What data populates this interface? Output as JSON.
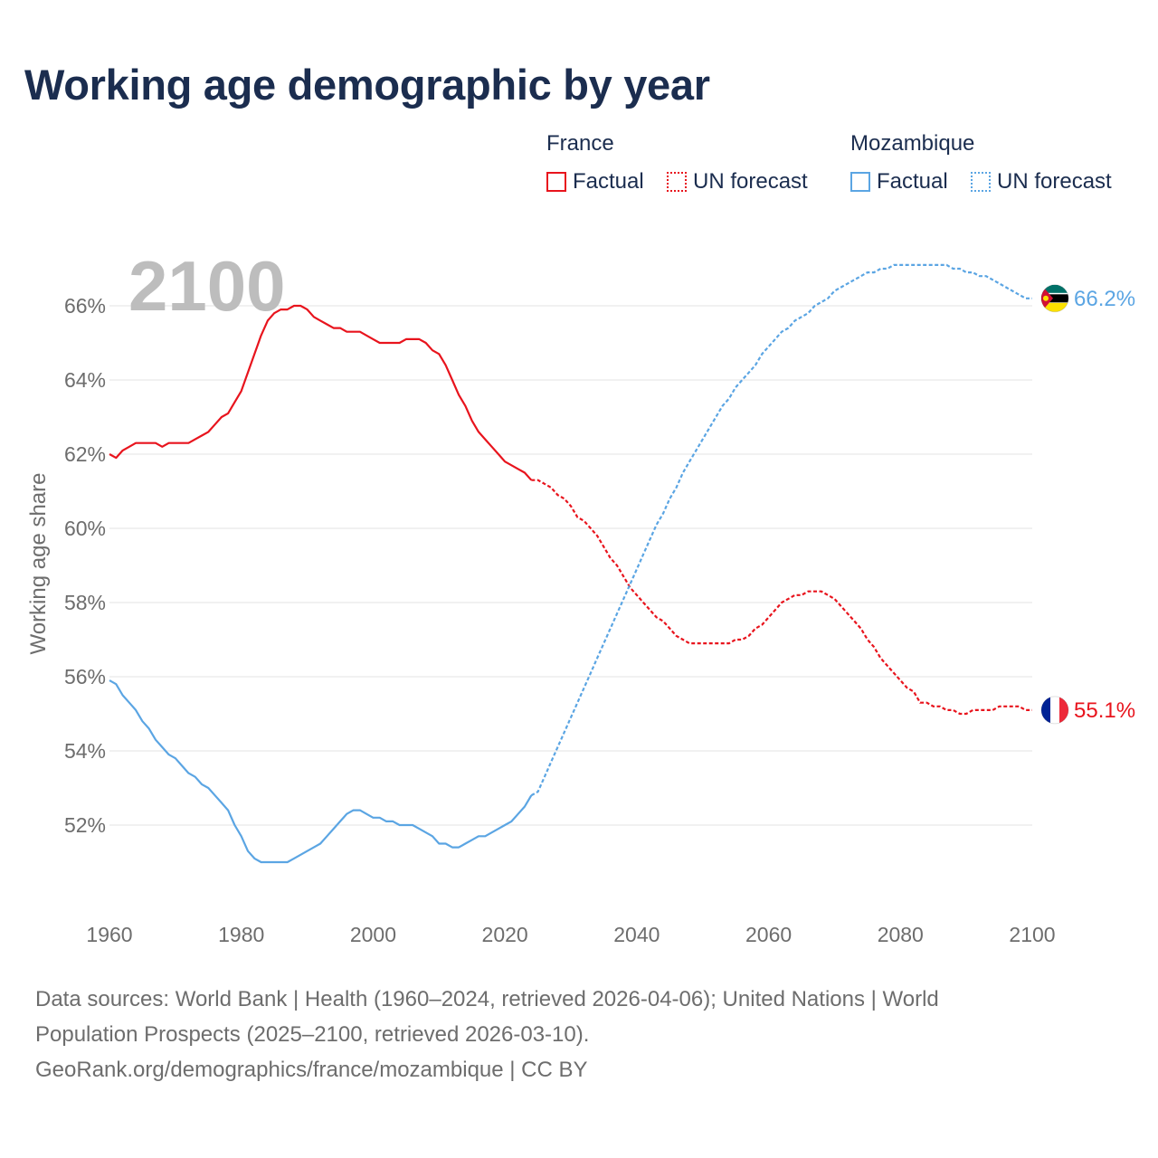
{
  "title": "Working age demographic by year",
  "legend": {
    "groups": [
      {
        "name": "France",
        "factual_label": "Factual",
        "forecast_label": "UN forecast",
        "color": "#e8141d"
      },
      {
        "name": "Mozambique",
        "factual_label": "Factual",
        "forecast_label": "UN forecast",
        "color": "#5ba5e3"
      }
    ]
  },
  "colors": {
    "france": "#e8141d",
    "mozambique": "#5ba5e3",
    "grid": "#e3e3e3",
    "axis_text": "#6d6d6d",
    "year_watermark": "#bdbdbd"
  },
  "chart_data": {
    "type": "line",
    "title": "Working age demographic by year",
    "xlabel": "",
    "ylabel": "Working age share",
    "xlim": [
      1960,
      2100
    ],
    "ylim": [
      50.2,
      67.2
    ],
    "x_ticks": [
      1960,
      1980,
      2000,
      2020,
      2040,
      2060,
      2080,
      2100
    ],
    "x_tick_labels": [
      "1960",
      "1980",
      "2000",
      "2020",
      "2040",
      "2060",
      "2080",
      "2100"
    ],
    "y_ticks": [
      52,
      54,
      56,
      58,
      60,
      62,
      64,
      66
    ],
    "y_tick_labels": [
      "52%",
      "54%",
      "56%",
      "58%",
      "60%",
      "62%",
      "64%",
      "66%"
    ],
    "current_year_label": "2100",
    "forecast_start_year": 2024,
    "series": [
      {
        "name": "France",
        "end_label": "55.1%",
        "flag_icon": "france-flag-icon",
        "factual": {
          "x": [
            1960,
            1961,
            1962,
            1963,
            1964,
            1965,
            1966,
            1967,
            1968,
            1969,
            1970,
            1971,
            1972,
            1973,
            1974,
            1975,
            1976,
            1977,
            1978,
            1979,
            1980,
            1981,
            1982,
            1983,
            1984,
            1985,
            1986,
            1987,
            1988,
            1989,
            1990,
            1991,
            1992,
            1993,
            1994,
            1995,
            1996,
            1997,
            1998,
            1999,
            2000,
            2001,
            2002,
            2003,
            2004,
            2005,
            2006,
            2007,
            2008,
            2009,
            2010,
            2011,
            2012,
            2013,
            2014,
            2015,
            2016,
            2017,
            2018,
            2019,
            2020,
            2021,
            2022,
            2023,
            2024
          ],
          "y": [
            62.0,
            61.9,
            62.1,
            62.2,
            62.3,
            62.3,
            62.3,
            62.3,
            62.2,
            62.3,
            62.3,
            62.3,
            62.3,
            62.4,
            62.5,
            62.6,
            62.8,
            63.0,
            63.1,
            63.4,
            63.7,
            64.2,
            64.7,
            65.2,
            65.6,
            65.8,
            65.9,
            65.9,
            66.0,
            66.0,
            65.9,
            65.7,
            65.6,
            65.5,
            65.4,
            65.4,
            65.3,
            65.3,
            65.3,
            65.2,
            65.1,
            65.0,
            65.0,
            65.0,
            65.0,
            65.1,
            65.1,
            65.1,
            65.0,
            64.8,
            64.7,
            64.4,
            64.0,
            63.6,
            63.3,
            62.9,
            62.6,
            62.4,
            62.2,
            62.0,
            61.8,
            61.7,
            61.6,
            61.5,
            61.3
          ]
        },
        "forecast": {
          "x": [
            2024,
            2025,
            2026,
            2027,
            2028,
            2029,
            2030,
            2031,
            2032,
            2033,
            2034,
            2035,
            2036,
            2037,
            2038,
            2039,
            2040,
            2041,
            2042,
            2043,
            2044,
            2045,
            2046,
            2047,
            2048,
            2049,
            2050,
            2051,
            2052,
            2053,
            2054,
            2055,
            2056,
            2057,
            2058,
            2059,
            2060,
            2061,
            2062,
            2063,
            2064,
            2065,
            2066,
            2067,
            2068,
            2069,
            2070,
            2071,
            2072,
            2073,
            2074,
            2075,
            2076,
            2077,
            2078,
            2079,
            2080,
            2081,
            2082,
            2083,
            2084,
            2085,
            2086,
            2087,
            2088,
            2089,
            2090,
            2091,
            2092,
            2093,
            2094,
            2095,
            2096,
            2097,
            2098,
            2099,
            2100
          ],
          "y": [
            61.3,
            61.3,
            61.2,
            61.1,
            60.9,
            60.8,
            60.6,
            60.3,
            60.2,
            60.0,
            59.8,
            59.5,
            59.2,
            59.0,
            58.7,
            58.4,
            58.2,
            58.0,
            57.8,
            57.6,
            57.5,
            57.3,
            57.1,
            57.0,
            56.9,
            56.9,
            56.9,
            56.9,
            56.9,
            56.9,
            56.9,
            57.0,
            57.0,
            57.1,
            57.3,
            57.4,
            57.6,
            57.8,
            58.0,
            58.1,
            58.2,
            58.2,
            58.3,
            58.3,
            58.3,
            58.2,
            58.1,
            57.9,
            57.7,
            57.5,
            57.3,
            57.0,
            56.8,
            56.5,
            56.3,
            56.1,
            55.9,
            55.7,
            55.6,
            55.3,
            55.3,
            55.2,
            55.2,
            55.1,
            55.1,
            55.0,
            55.0,
            55.1,
            55.1,
            55.1,
            55.1,
            55.2,
            55.2,
            55.2,
            55.2,
            55.1,
            55.1
          ]
        }
      },
      {
        "name": "Mozambique",
        "end_label": "66.2%",
        "flag_icon": "mozambique-flag-icon",
        "factual": {
          "x": [
            1960,
            1961,
            1962,
            1963,
            1964,
            1965,
            1966,
            1967,
            1968,
            1969,
            1970,
            1971,
            1972,
            1973,
            1974,
            1975,
            1976,
            1977,
            1978,
            1979,
            1980,
            1981,
            1982,
            1983,
            1984,
            1985,
            1986,
            1987,
            1988,
            1989,
            1990,
            1991,
            1992,
            1993,
            1994,
            1995,
            1996,
            1997,
            1998,
            1999,
            2000,
            2001,
            2002,
            2003,
            2004,
            2005,
            2006,
            2007,
            2008,
            2009,
            2010,
            2011,
            2012,
            2013,
            2014,
            2015,
            2016,
            2017,
            2018,
            2019,
            2020,
            2021,
            2022,
            2023,
            2024
          ],
          "y": [
            55.9,
            55.8,
            55.5,
            55.3,
            55.1,
            54.8,
            54.6,
            54.3,
            54.1,
            53.9,
            53.8,
            53.6,
            53.4,
            53.3,
            53.1,
            53.0,
            52.8,
            52.6,
            52.4,
            52.0,
            51.7,
            51.3,
            51.1,
            51.0,
            51.0,
            51.0,
            51.0,
            51.0,
            51.1,
            51.2,
            51.3,
            51.4,
            51.5,
            51.7,
            51.9,
            52.1,
            52.3,
            52.4,
            52.4,
            52.3,
            52.2,
            52.2,
            52.1,
            52.1,
            52.0,
            52.0,
            52.0,
            51.9,
            51.8,
            51.7,
            51.5,
            51.5,
            51.4,
            51.4,
            51.5,
            51.6,
            51.7,
            51.7,
            51.8,
            51.9,
            52.0,
            52.1,
            52.3,
            52.5,
            52.8
          ]
        },
        "forecast": {
          "x": [
            2024,
            2025,
            2026,
            2027,
            2028,
            2029,
            2030,
            2031,
            2032,
            2033,
            2034,
            2035,
            2036,
            2037,
            2038,
            2039,
            2040,
            2041,
            2042,
            2043,
            2044,
            2045,
            2046,
            2047,
            2048,
            2049,
            2050,
            2051,
            2052,
            2053,
            2054,
            2055,
            2056,
            2057,
            2058,
            2059,
            2060,
            2061,
            2062,
            2063,
            2064,
            2065,
            2066,
            2067,
            2068,
            2069,
            2070,
            2071,
            2072,
            2073,
            2074,
            2075,
            2076,
            2077,
            2078,
            2079,
            2080,
            2081,
            2082,
            2083,
            2084,
            2085,
            2086,
            2087,
            2088,
            2089,
            2090,
            2091,
            2092,
            2093,
            2094,
            2095,
            2096,
            2097,
            2098,
            2099,
            2100
          ],
          "y": [
            52.8,
            52.9,
            53.3,
            53.7,
            54.1,
            54.5,
            54.9,
            55.3,
            55.7,
            56.1,
            56.5,
            56.9,
            57.3,
            57.7,
            58.1,
            58.5,
            58.9,
            59.3,
            59.7,
            60.1,
            60.4,
            60.8,
            61.1,
            61.5,
            61.8,
            62.1,
            62.4,
            62.7,
            63.0,
            63.3,
            63.5,
            63.8,
            64.0,
            64.2,
            64.4,
            64.7,
            64.9,
            65.1,
            65.3,
            65.4,
            65.6,
            65.7,
            65.8,
            66.0,
            66.1,
            66.2,
            66.4,
            66.5,
            66.6,
            66.7,
            66.8,
            66.9,
            66.9,
            67.0,
            67.0,
            67.1,
            67.1,
            67.1,
            67.1,
            67.1,
            67.1,
            67.1,
            67.1,
            67.1,
            67.0,
            67.0,
            66.9,
            66.9,
            66.8,
            66.8,
            66.7,
            66.6,
            66.5,
            66.4,
            66.3,
            66.2,
            66.2
          ]
        }
      }
    ]
  },
  "footer": {
    "line1": "Data sources: World Bank | Health (1960–2024, retrieved 2026-04-06); United Nations | World",
    "line2": "Population Prospects (2025–2100, retrieved 2026-03-10).",
    "line3": "GeoRank.org/demographics/france/mozambique | CC BY"
  }
}
